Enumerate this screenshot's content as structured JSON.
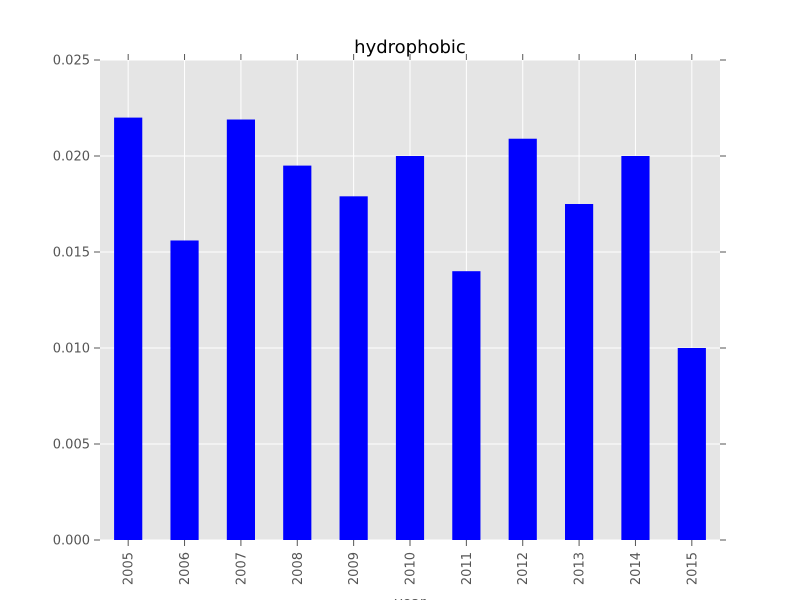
{
  "chart_data": {
    "type": "bar",
    "title": "hydrophobic",
    "xlabel": "year",
    "ylabel": "",
    "categories": [
      "2005",
      "2006",
      "2007",
      "2008",
      "2009",
      "2010",
      "2011",
      "2012",
      "2013",
      "2014",
      "2015"
    ],
    "values": [
      0.022,
      0.0156,
      0.0219,
      0.0195,
      0.0179,
      0.02,
      0.014,
      0.0209,
      0.0175,
      0.02,
      0.01
    ],
    "ylim": [
      0,
      0.025
    ],
    "yticks": [
      "0.000",
      "0.005",
      "0.010",
      "0.015",
      "0.020",
      "0.025"
    ],
    "grid": true,
    "legend": "none",
    "colors": {
      "bar": "#0000ff",
      "plot_background": "#e5e5e5",
      "grid": "#ffffff",
      "tick_text": "#555555",
      "title_text": "#000000"
    }
  }
}
